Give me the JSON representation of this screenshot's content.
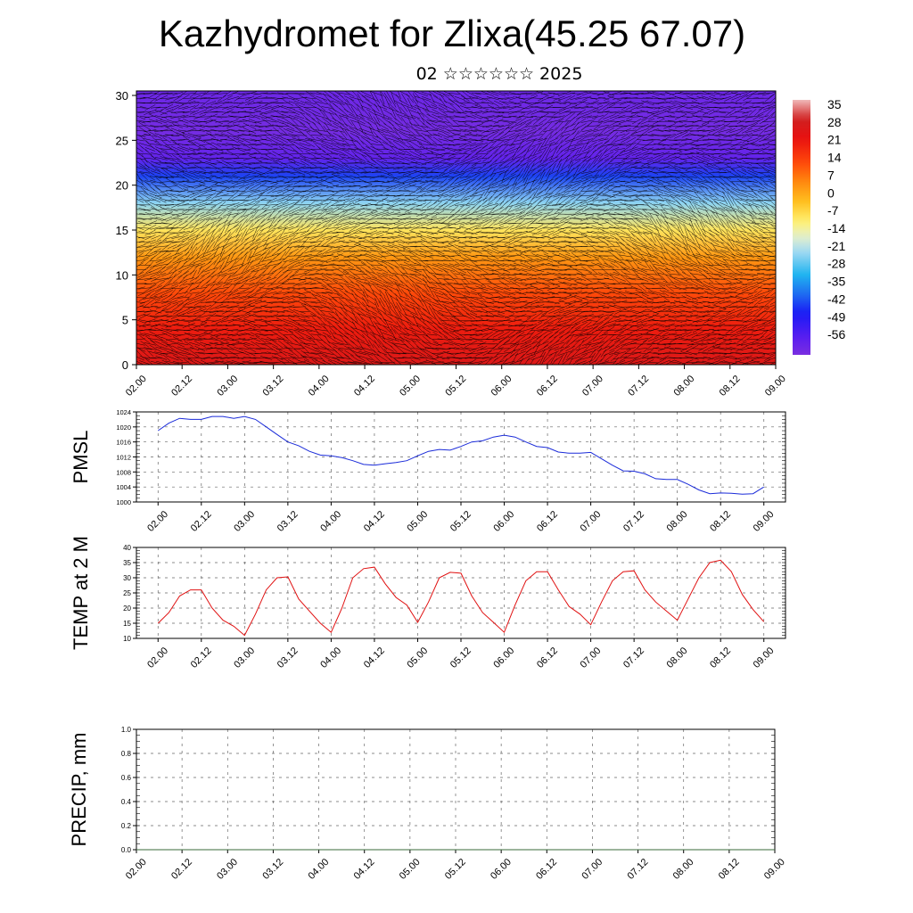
{
  "title": "Kazhydromet for Zlixa(45.25 67.07)",
  "subtitle": "02 ☆☆☆☆☆☆ 2025",
  "colors": {
    "pmsl_line": "#1a2bd9",
    "temp_line": "#e01010",
    "precip_line": "#3a6a3a",
    "vector": "#000000"
  },
  "chart_data": [
    {
      "type": "heatmap",
      "name": "cross-section",
      "x_ticks": [
        "02.00",
        "02.12",
        "03.00",
        "03.12",
        "04.00",
        "04.12",
        "05.00",
        "05.12",
        "06.00",
        "06.12",
        "07.00",
        "07.12",
        "08.00",
        "08.12",
        "09.00"
      ],
      "y_ticks": [
        "0",
        "5",
        "10",
        "15",
        "20",
        "25",
        "30"
      ],
      "ylim": [
        0,
        30.5
      ],
      "colorbar_labels": [
        "35",
        "28",
        "21",
        "14",
        "7",
        "0",
        "-7",
        "-14",
        "-21",
        "-28",
        "-35",
        "-42",
        "-49",
        "-56"
      ],
      "colorbar_range": [
        -63,
        42
      ],
      "overlay": "wind vectors",
      "temperature_profile": [
        {
          "level": 0,
          "value": 30
        },
        {
          "level": 4,
          "value": 24
        },
        {
          "level": 8,
          "value": 16
        },
        {
          "level": 12,
          "value": 6
        },
        {
          "level": 15,
          "value": -6
        },
        {
          "level": 18,
          "value": -22
        },
        {
          "level": 21,
          "value": -42
        },
        {
          "level": 23,
          "value": -58
        },
        {
          "level": 26,
          "value": -62
        },
        {
          "level": 30.5,
          "value": -60
        }
      ]
    },
    {
      "type": "line",
      "name": "pmsl",
      "ylabel": "PMSL",
      "ylim": [
        1000,
        1024
      ],
      "y_ticks": [
        "1000",
        "1004",
        "1008",
        "1012",
        "1016",
        "1020",
        "1024"
      ],
      "x_ticks": [
        "02.00",
        "02.12",
        "03.00",
        "03.12",
        "04.00",
        "04.12",
        "05.00",
        "05.12",
        "06.00",
        "06.12",
        "07.00",
        "07.12",
        "08.00",
        "08.12",
        "09.00"
      ],
      "x": [
        0,
        3,
        6,
        9,
        12,
        15,
        18,
        21,
        24,
        27,
        30,
        33,
        36,
        39,
        42,
        45,
        48,
        51,
        54,
        57,
        60,
        63,
        66,
        69,
        72,
        75,
        78,
        81,
        84,
        87,
        90,
        93,
        96,
        99,
        102,
        105,
        108,
        111,
        114,
        117,
        120,
        123,
        126,
        129,
        132,
        135,
        138,
        141,
        144,
        147,
        150,
        153,
        156,
        159,
        162,
        165,
        168
      ],
      "values": [
        1019,
        1021,
        1022.3,
        1022,
        1022,
        1022.8,
        1022.8,
        1022.3,
        1022.8,
        1022,
        1020,
        1018,
        1016,
        1015,
        1013.5,
        1012.5,
        1012.3,
        1011.8,
        1011,
        1010,
        1009.8,
        1010.2,
        1010.5,
        1011,
        1012.3,
        1013.5,
        1014,
        1013.8,
        1014.8,
        1016,
        1016.3,
        1017.3,
        1017.8,
        1017.3,
        1016,
        1014.8,
        1014.5,
        1013.3,
        1013,
        1013,
        1013.2,
        1011.5,
        1009.8,
        1008.3,
        1008.2,
        1007.5,
        1006.2,
        1006,
        1006,
        1004.7,
        1003.2,
        1002.2,
        1002.4,
        1002.3,
        1002.1,
        1002.2,
        1004
      ]
    },
    {
      "type": "line",
      "name": "temp",
      "ylabel": "TEMP at 2 M",
      "ylim": [
        10,
        40
      ],
      "y_ticks": [
        "10",
        "15",
        "20",
        "25",
        "30",
        "35",
        "40"
      ],
      "x_ticks": [
        "02.00",
        "02.12",
        "03.00",
        "03.12",
        "04.00",
        "04.12",
        "05.00",
        "05.12",
        "06.00",
        "06.12",
        "07.00",
        "07.12",
        "08.00",
        "08.12",
        "09.00"
      ],
      "x": [
        0,
        3,
        6,
        9,
        12,
        15,
        18,
        21,
        24,
        27,
        30,
        33,
        36,
        39,
        42,
        45,
        48,
        51,
        54,
        57,
        60,
        63,
        66,
        69,
        72,
        75,
        78,
        81,
        84,
        87,
        90,
        93,
        96,
        99,
        102,
        105,
        108,
        111,
        114,
        117,
        120,
        123,
        126,
        129,
        132,
        135,
        138,
        141,
        144,
        147,
        150,
        153,
        156,
        159,
        162,
        165,
        168
      ],
      "values": [
        15,
        18.5,
        24,
        26,
        26,
        20,
        16,
        14,
        11,
        18,
        26,
        30,
        30.3,
        23,
        19,
        15,
        12,
        20,
        30,
        33,
        33.5,
        28,
        23.5,
        21,
        15.3,
        22,
        30,
        31.8,
        31.5,
        24,
        18.5,
        15.3,
        12,
        21,
        29,
        32,
        32,
        26,
        20.5,
        18,
        14.5,
        22,
        29,
        32,
        32.3,
        26,
        22,
        19,
        16,
        23,
        30,
        35,
        35.8,
        32,
        24.5,
        19.5,
        15.5
      ]
    },
    {
      "type": "line",
      "name": "precip",
      "ylabel": "PRECIP, mm",
      "ylim": [
        0,
        1.0
      ],
      "y_ticks": [
        "0.0",
        "0.2",
        "0.4",
        "0.6",
        "0.8",
        "1.0"
      ],
      "x_ticks": [
        "02.00",
        "02.12",
        "03.00",
        "03.12",
        "04.00",
        "04.12",
        "05.00",
        "05.12",
        "06.00",
        "06.12",
        "07.00",
        "07.12",
        "08.00",
        "08.12",
        "09.00"
      ],
      "x": [
        0,
        168
      ],
      "values": [
        0,
        0
      ]
    }
  ]
}
